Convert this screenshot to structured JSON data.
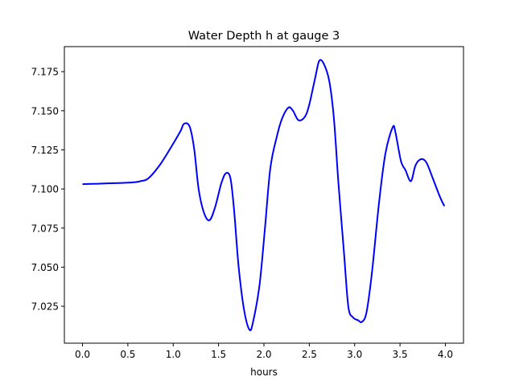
{
  "chart_data": {
    "type": "line",
    "title": "Water Depth h at gauge 3",
    "xlabel": "hours",
    "ylabel": "",
    "xlim": [
      -0.2,
      4.2
    ],
    "ylim": [
      7.0014,
      7.191
    ],
    "xticks": [
      0.0,
      0.5,
      1.0,
      1.5,
      2.0,
      2.5,
      3.0,
      3.5,
      4.0
    ],
    "xtick_labels": [
      "0.0",
      "0.5",
      "1.0",
      "1.5",
      "2.0",
      "2.5",
      "3.0",
      "3.5",
      "4.0"
    ],
    "yticks": [
      7.025,
      7.05,
      7.075,
      7.1,
      7.125,
      7.15,
      7.175
    ],
    "ytick_labels": [
      "7.025",
      "7.050",
      "7.075",
      "7.100",
      "7.125",
      "7.150",
      "7.175"
    ],
    "grid": false,
    "series": [
      {
        "name": "h",
        "color": "#0000ff",
        "x": [
          0,
          0.5,
          0.64,
          0.73,
          0.86,
          0.99,
          1.08,
          1.12,
          1.18,
          1.23,
          1.28,
          1.34,
          1.4,
          1.46,
          1.53,
          1.58,
          1.63,
          1.67,
          1.72,
          1.78,
          1.84,
          1.88,
          1.95,
          2.01,
          2.07,
          2.14,
          2.2,
          2.27,
          2.32,
          2.38,
          2.45,
          2.5,
          2.57,
          2.61,
          2.66,
          2.72,
          2.77,
          2.82,
          2.88,
          2.93,
          2.98,
          3.04,
          3.08,
          3.13,
          3.19,
          3.27,
          3.34,
          3.42,
          3.45,
          3.51,
          3.56,
          3.62,
          3.67,
          3.73,
          3.79,
          3.86,
          3.94,
          3.99
        ],
        "y": [
          7.1031,
          7.104,
          7.105,
          7.107,
          7.116,
          7.128,
          7.137,
          7.1417,
          7.14,
          7.126,
          7.1,
          7.0846,
          7.08,
          7.088,
          7.1036,
          7.11,
          7.107,
          7.087,
          7.051,
          7.023,
          7.01,
          7.015,
          7.038,
          7.074,
          7.113,
          7.133,
          7.145,
          7.152,
          7.15,
          7.144,
          7.146,
          7.154,
          7.1725,
          7.182,
          7.18,
          7.169,
          7.146,
          7.105,
          7.061,
          7.025,
          7.018,
          7.016,
          7.015,
          7.021,
          7.046,
          7.092,
          7.123,
          7.1395,
          7.136,
          7.118,
          7.112,
          7.105,
          7.115,
          7.119,
          7.117,
          7.107,
          7.095,
          7.089
        ]
      }
    ]
  }
}
